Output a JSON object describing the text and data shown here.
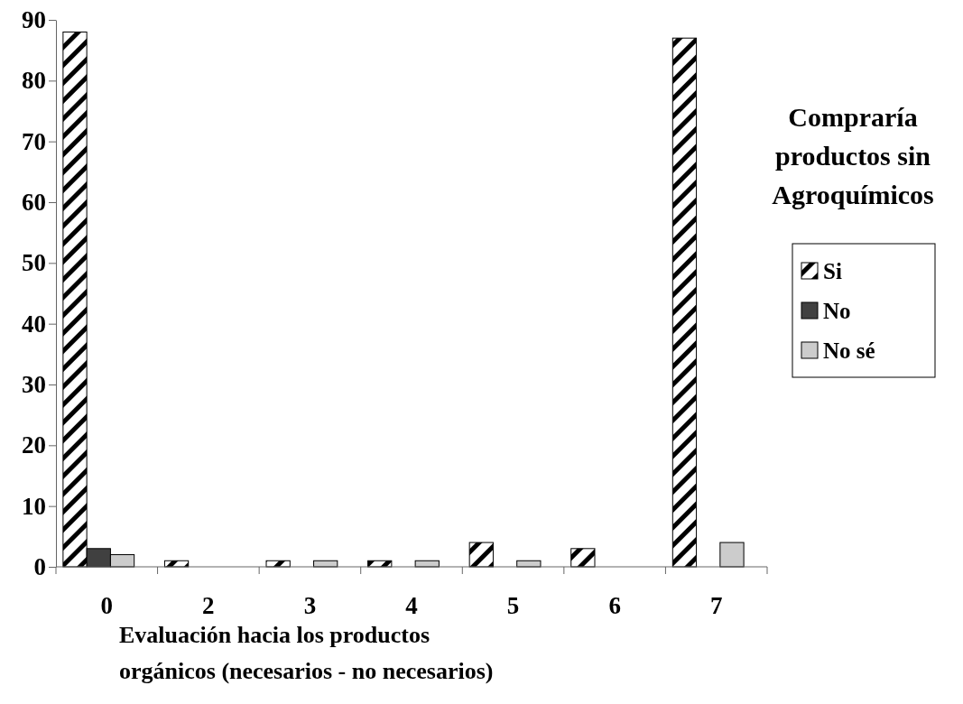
{
  "chart_data": {
    "type": "bar",
    "categories": [
      "0",
      "2",
      "3",
      "4",
      "5",
      "6",
      "7"
    ],
    "series": [
      {
        "name": "Si",
        "color": "#000000",
        "values": [
          88,
          1,
          1,
          1,
          4,
          3,
          87
        ]
      },
      {
        "name": "No",
        "color": "#404040",
        "values": [
          3,
          0,
          0,
          0,
          0,
          0,
          0
        ]
      },
      {
        "name": "No sé",
        "color": "#cccccc",
        "values": [
          2,
          0,
          1,
          1,
          1,
          0,
          4
        ]
      }
    ],
    "ylim": [
      0,
      90
    ],
    "yticks": [
      0,
      10,
      20,
      30,
      40,
      50,
      60,
      70,
      80,
      90
    ],
    "grid": false,
    "legend": "right",
    "legend_title": "Compraría productos sin Agroquímicos",
    "xlabel": "Evaluación hacia los productos orgánicos (necesarios - no necesarios)"
  }
}
